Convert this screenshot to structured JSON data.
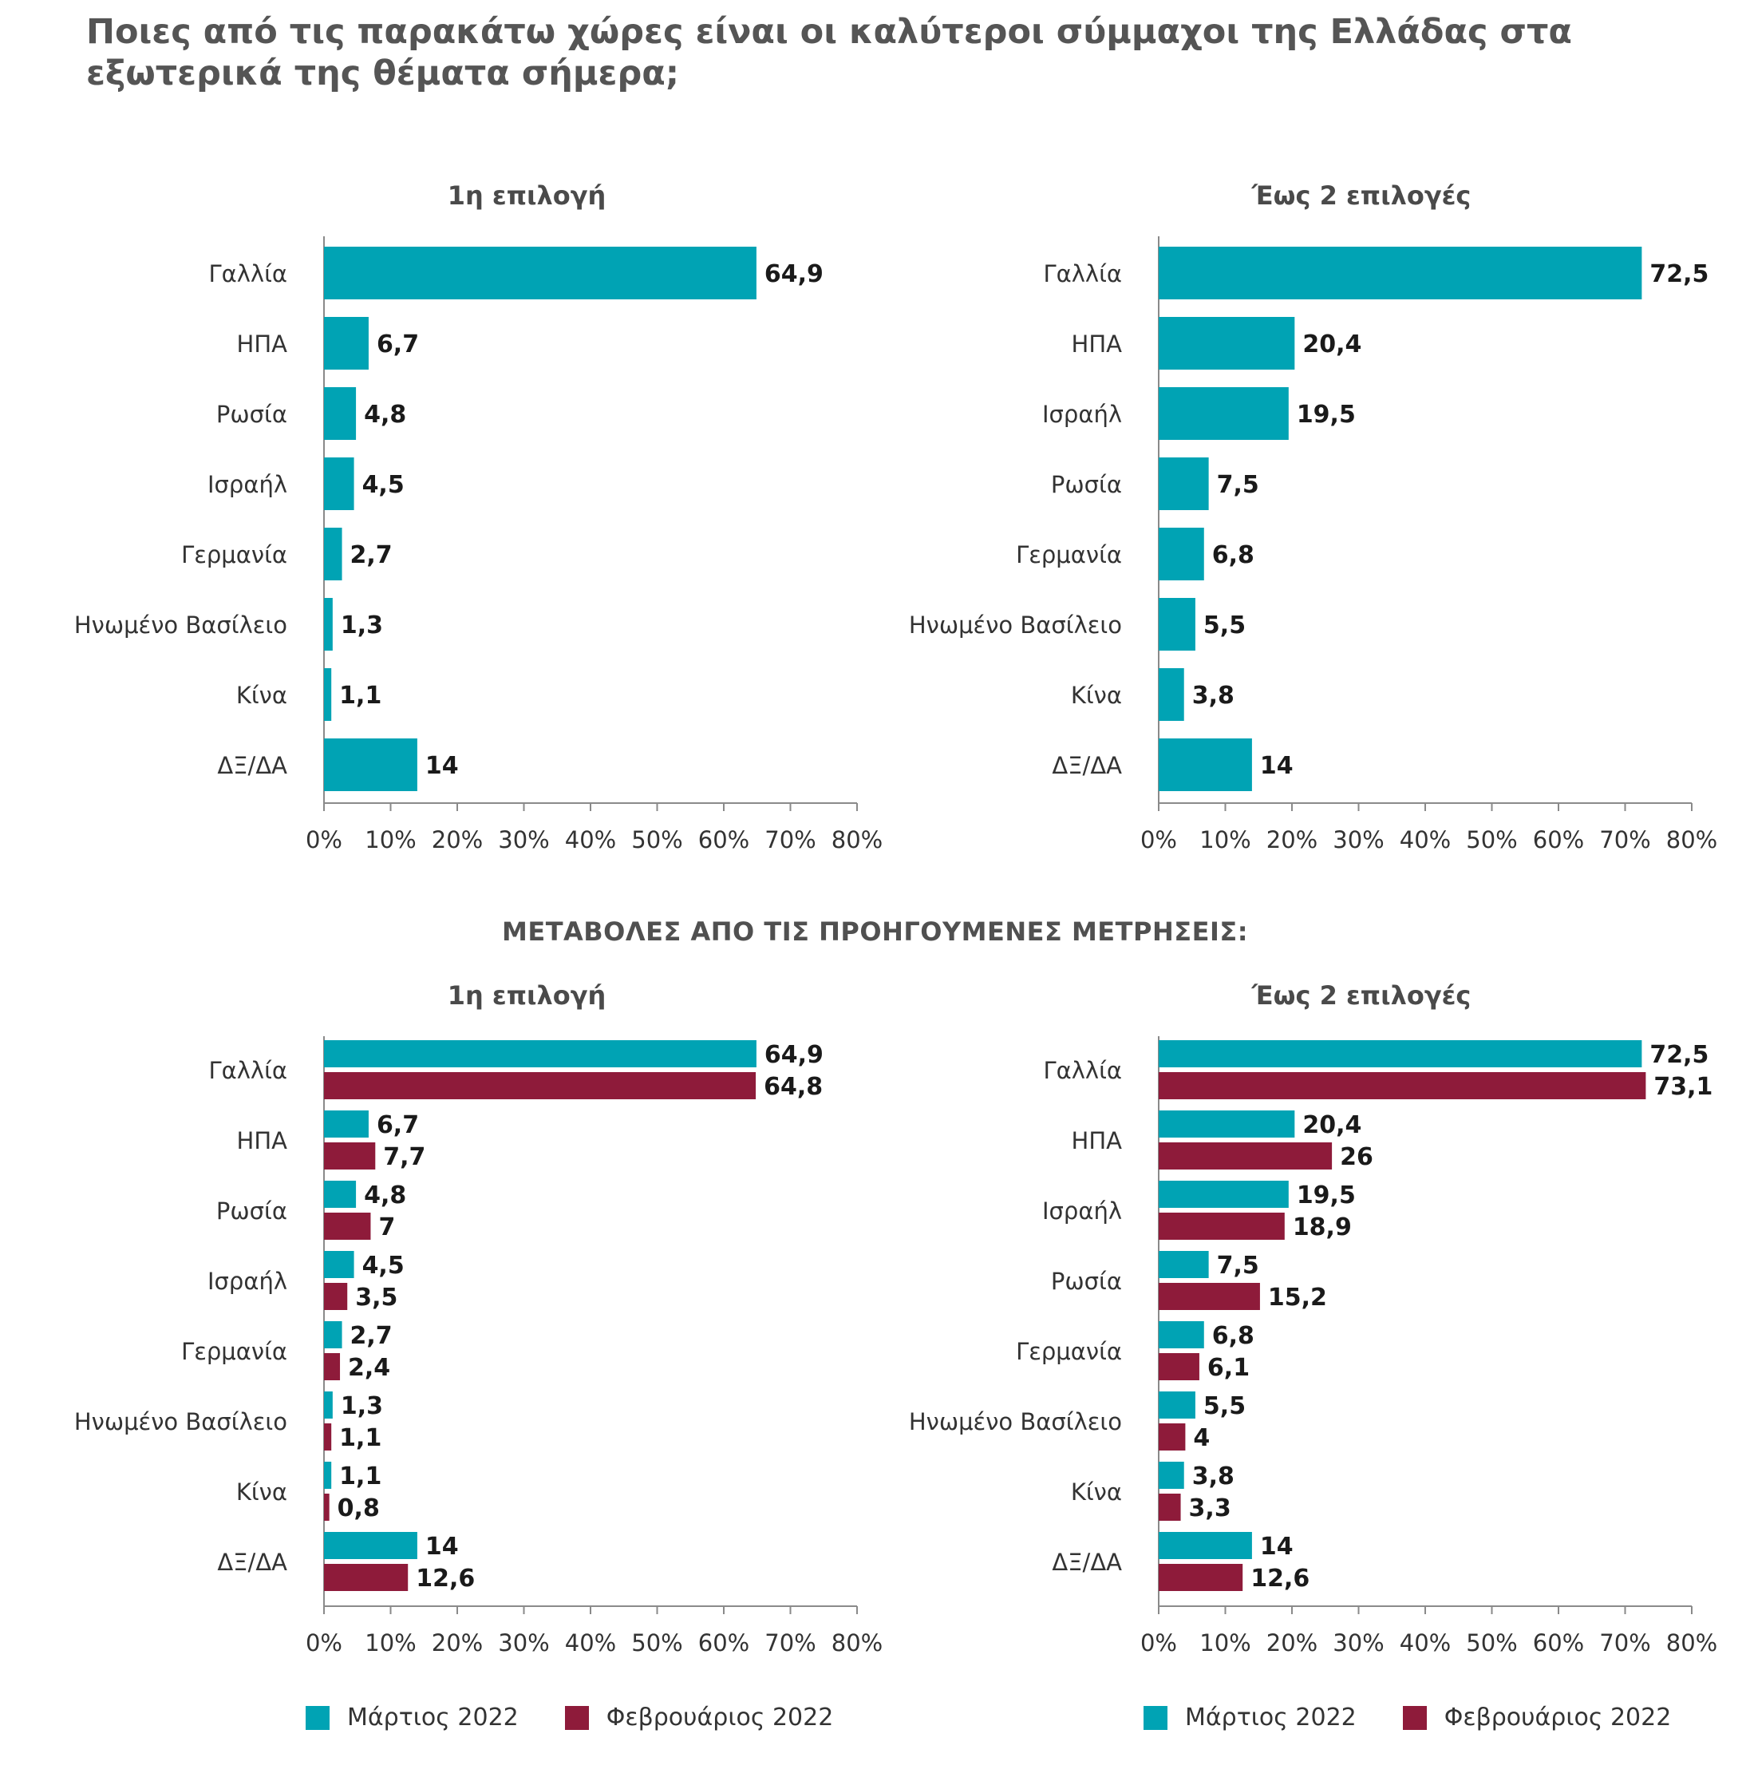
{
  "title": "Ποιες από τις παρακάτω χώρες είναι οι καλύτεροι σύμμαχοι της Ελλάδας στα εξωτερικά της θέματα σήμερα;",
  "section_title": "ΜΕΤΑΒΟΛΕΣ ΑΠΟ ΤΙΣ ΠΡΟΗΓΟΥΜΕΝΕΣ ΜΕΤΡΗΣΕΙΣ:",
  "colors": {
    "march": "#00A3B4",
    "february": "#8E1B3A",
    "axis": "#8a8a8a"
  },
  "legend": {
    "march": "Μάρτιος 2022",
    "february": "Φεβρουάριος 2022"
  },
  "chart_data": [
    {
      "type": "bar",
      "orientation": "horizontal",
      "title": "1η επιλογή",
      "categories": [
        "Γαλλία",
        "ΗΠΑ",
        "Ρωσία",
        "Ισραήλ",
        "Γερμανία",
        "Ηνωμένο Βασίλειο",
        "Κίνα",
        "ΔΞ/ΔΑ"
      ],
      "series": [
        {
          "values": [
            64.9,
            6.7,
            4.8,
            4.5,
            2.7,
            1.3,
            1.1,
            14
          ],
          "labels": [
            "64,9",
            "6,7",
            "4,8",
            "4,5",
            "2,7",
            "1,3",
            "1,1",
            "14"
          ]
        }
      ],
      "xlim": [
        0,
        80
      ],
      "xticks": [
        "0%",
        "10%",
        "20%",
        "30%",
        "40%",
        "50%",
        "60%",
        "70%",
        "80%"
      ],
      "grid": false
    },
    {
      "type": "bar",
      "orientation": "horizontal",
      "title": "Έως 2 επιλογές",
      "categories": [
        "Γαλλία",
        "ΗΠΑ",
        "Ισραήλ",
        "Ρωσία",
        "Γερμανία",
        "Ηνωμένο Βασίλειο",
        "Κίνα",
        "ΔΞ/ΔΑ"
      ],
      "series": [
        {
          "values": [
            72.5,
            20.4,
            19.5,
            7.5,
            6.8,
            5.5,
            3.8,
            14
          ],
          "labels": [
            "72,5",
            "20,4",
            "19,5",
            "7,5",
            "6,8",
            "5,5",
            "3,8",
            "14"
          ]
        }
      ],
      "xlim": [
        0,
        80
      ],
      "xticks": [
        "0%",
        "10%",
        "20%",
        "30%",
        "40%",
        "50%",
        "60%",
        "70%",
        "80%"
      ],
      "grid": false
    },
    {
      "type": "bar",
      "orientation": "horizontal",
      "title": "1η επιλογή",
      "categories": [
        "Γαλλία",
        "ΗΠΑ",
        "Ρωσία",
        "Ισραήλ",
        "Γερμανία",
        "Ηνωμένο Βασίλειο",
        "Κίνα",
        "ΔΞ/ΔΑ"
      ],
      "series": [
        {
          "name": "Μάρτιος 2022",
          "values": [
            64.9,
            6.7,
            4.8,
            4.5,
            2.7,
            1.3,
            1.1,
            14
          ],
          "labels": [
            "64,9",
            "6,7",
            "4,8",
            "4,5",
            "2,7",
            "1,3",
            "1,1",
            "14"
          ]
        },
        {
          "name": "Φεβρουάριος 2022",
          "values": [
            64.8,
            7.7,
            7,
            3.5,
            2.4,
            1.1,
            0.8,
            12.6
          ],
          "labels": [
            "64,8",
            "7,7",
            "7",
            "3,5",
            "2,4",
            "1,1",
            "0,8",
            "12,6"
          ]
        }
      ],
      "xlim": [
        0,
        80
      ],
      "xticks": [
        "0%",
        "10%",
        "20%",
        "30%",
        "40%",
        "50%",
        "60%",
        "70%",
        "80%"
      ],
      "grid": false,
      "legend": "bottom"
    },
    {
      "type": "bar",
      "orientation": "horizontal",
      "title": "Έως 2 επιλογές",
      "categories": [
        "Γαλλία",
        "ΗΠΑ",
        "Ισραήλ",
        "Ρωσία",
        "Γερμανία",
        "Ηνωμένο Βασίλειο",
        "Κίνα",
        "ΔΞ/ΔΑ"
      ],
      "series": [
        {
          "name": "Μάρτιος 2022",
          "values": [
            72.5,
            20.4,
            19.5,
            7.5,
            6.8,
            5.5,
            3.8,
            14
          ],
          "labels": [
            "72,5",
            "20,4",
            "19,5",
            "7,5",
            "6,8",
            "5,5",
            "3,8",
            "14"
          ]
        },
        {
          "name": "Φεβρουάριος 2022",
          "values": [
            73.1,
            26,
            18.9,
            15.2,
            6.1,
            4,
            3.3,
            12.6
          ],
          "labels": [
            "73,1",
            "26",
            "18,9",
            "15,2",
            "6,1",
            "4",
            "3,3",
            "12,6"
          ]
        }
      ],
      "xlim": [
        0,
        80
      ],
      "xticks": [
        "0%",
        "10%",
        "20%",
        "30%",
        "40%",
        "50%",
        "60%",
        "70%",
        "80%"
      ],
      "grid": false,
      "legend": "bottom"
    }
  ]
}
